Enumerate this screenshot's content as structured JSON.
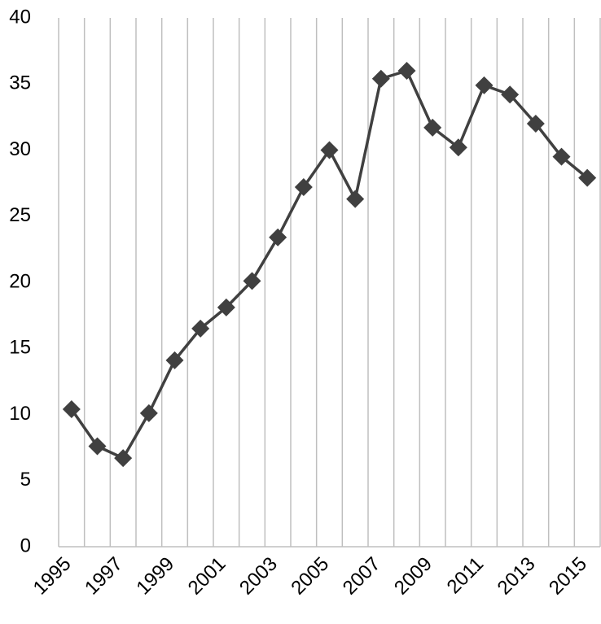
{
  "chart_data": {
    "type": "line",
    "categories": [
      "1995",
      null,
      "1997",
      null,
      "1999",
      null,
      "2001",
      null,
      "2003",
      null,
      "2005",
      null,
      "2007",
      null,
      "2009",
      null,
      "2011",
      null,
      "2013",
      null,
      "2015"
    ],
    "series": [
      {
        "name": null,
        "color": "#404040",
        "values": [
          10.4,
          7.6,
          6.7,
          10.1,
          14.1,
          16.5,
          18.1,
          20.1,
          23.4,
          27.2,
          30.0,
          26.3,
          35.4,
          36.0,
          31.7,
          30.2,
          34.9,
          34.2,
          32.0,
          29.5,
          27.9
        ]
      }
    ],
    "ylim": [
      0,
      40
    ],
    "yticks": [
      0,
      5,
      10,
      15,
      20,
      25,
      30,
      35,
      40
    ],
    "grid": true
  }
}
